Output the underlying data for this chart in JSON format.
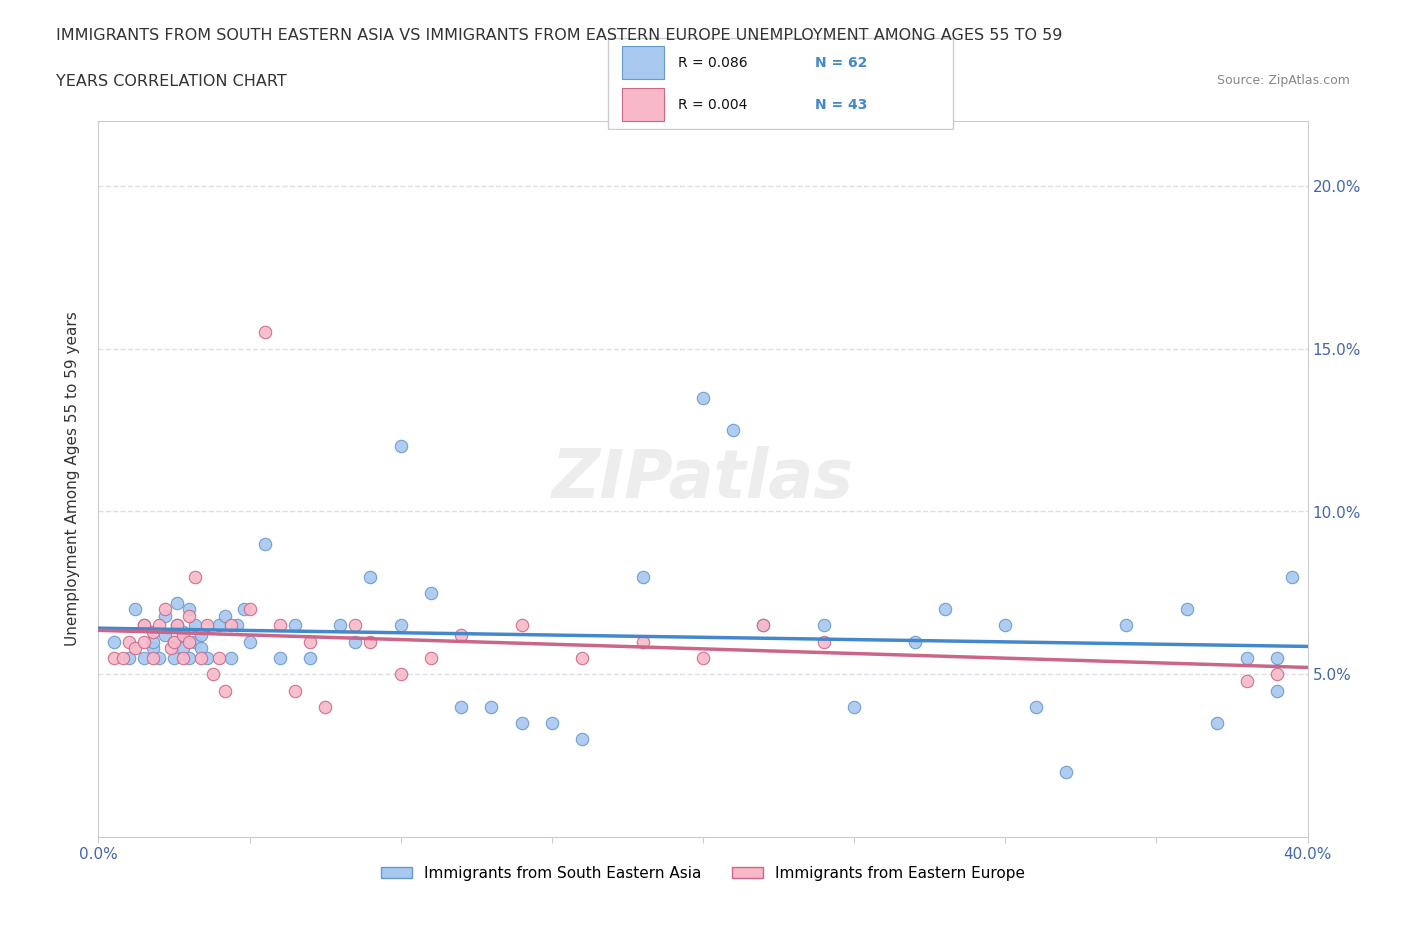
{
  "title_line1": "IMMIGRANTS FROM SOUTH EASTERN ASIA VS IMMIGRANTS FROM EASTERN EUROPE UNEMPLOYMENT AMONG AGES 55 TO 59",
  "title_line2": "YEARS CORRELATION CHART",
  "source_text": "Source: ZipAtlas.com",
  "xlabel": "",
  "ylabel": "Unemployment Among Ages 55 to 59 years",
  "xlim": [
    0.0,
    0.4
  ],
  "ylim": [
    0.0,
    0.22
  ],
  "xticks": [
    0.0,
    0.05,
    0.1,
    0.15,
    0.2,
    0.25,
    0.3,
    0.35,
    0.4
  ],
  "xticklabels": [
    "0.0%",
    "",
    "",
    "",
    "",
    "",
    "",
    "",
    "40.0%"
  ],
  "yticks": [
    0.0,
    0.05,
    0.1,
    0.15,
    0.2
  ],
  "yticklabels": [
    "",
    "5.0%",
    "10.0%",
    "15.0%",
    "20.0%"
  ],
  "series1_color": "#a8c8f0",
  "series1_edge": "#6699cc",
  "series2_color": "#f8b8c8",
  "series2_edge": "#cc6688",
  "line1_color": "#4488cc",
  "line2_color": "#cc6688",
  "legend_R1": "R = 0.086",
  "legend_N1": "N = 62",
  "legend_R2": "R = 0.004",
  "legend_N2": "N = 43",
  "watermark": "ZIPatlas",
  "grid_color": "#ddddee",
  "series1_x": [
    0.005,
    0.01,
    0.012,
    0.015,
    0.015,
    0.018,
    0.018,
    0.02,
    0.022,
    0.022,
    0.025,
    0.025,
    0.026,
    0.026,
    0.028,
    0.028,
    0.03,
    0.03,
    0.032,
    0.032,
    0.034,
    0.034,
    0.036,
    0.04,
    0.042,
    0.044,
    0.046,
    0.048,
    0.05,
    0.055,
    0.06,
    0.065,
    0.07,
    0.08,
    0.085,
    0.09,
    0.1,
    0.1,
    0.11,
    0.12,
    0.13,
    0.14,
    0.15,
    0.16,
    0.18,
    0.2,
    0.21,
    0.22,
    0.24,
    0.25,
    0.27,
    0.28,
    0.3,
    0.31,
    0.32,
    0.34,
    0.36,
    0.37,
    0.38,
    0.39,
    0.395,
    0.39
  ],
  "series1_y": [
    0.06,
    0.055,
    0.07,
    0.055,
    0.065,
    0.058,
    0.06,
    0.055,
    0.062,
    0.068,
    0.055,
    0.06,
    0.065,
    0.072,
    0.058,
    0.063,
    0.055,
    0.07,
    0.06,
    0.065,
    0.062,
    0.058,
    0.055,
    0.065,
    0.068,
    0.055,
    0.065,
    0.07,
    0.06,
    0.09,
    0.055,
    0.065,
    0.055,
    0.065,
    0.06,
    0.08,
    0.12,
    0.065,
    0.075,
    0.04,
    0.04,
    0.035,
    0.035,
    0.03,
    0.08,
    0.135,
    0.125,
    0.065,
    0.065,
    0.04,
    0.06,
    0.07,
    0.065,
    0.04,
    0.02,
    0.065,
    0.07,
    0.035,
    0.055,
    0.055,
    0.08,
    0.045
  ],
  "series2_x": [
    0.005,
    0.008,
    0.01,
    0.012,
    0.015,
    0.015,
    0.018,
    0.018,
    0.02,
    0.022,
    0.024,
    0.025,
    0.026,
    0.028,
    0.028,
    0.03,
    0.03,
    0.032,
    0.034,
    0.036,
    0.038,
    0.04,
    0.042,
    0.044,
    0.05,
    0.055,
    0.06,
    0.065,
    0.07,
    0.075,
    0.085,
    0.09,
    0.1,
    0.11,
    0.12,
    0.14,
    0.16,
    0.18,
    0.2,
    0.22,
    0.24,
    0.38,
    0.39
  ],
  "series2_y": [
    0.055,
    0.055,
    0.06,
    0.058,
    0.06,
    0.065,
    0.055,
    0.063,
    0.065,
    0.07,
    0.058,
    0.06,
    0.065,
    0.055,
    0.062,
    0.068,
    0.06,
    0.08,
    0.055,
    0.065,
    0.05,
    0.055,
    0.045,
    0.065,
    0.07,
    0.155,
    0.065,
    0.045,
    0.06,
    0.04,
    0.065,
    0.06,
    0.05,
    0.055,
    0.062,
    0.065,
    0.055,
    0.06,
    0.055,
    0.065,
    0.06,
    0.048,
    0.05
  ]
}
